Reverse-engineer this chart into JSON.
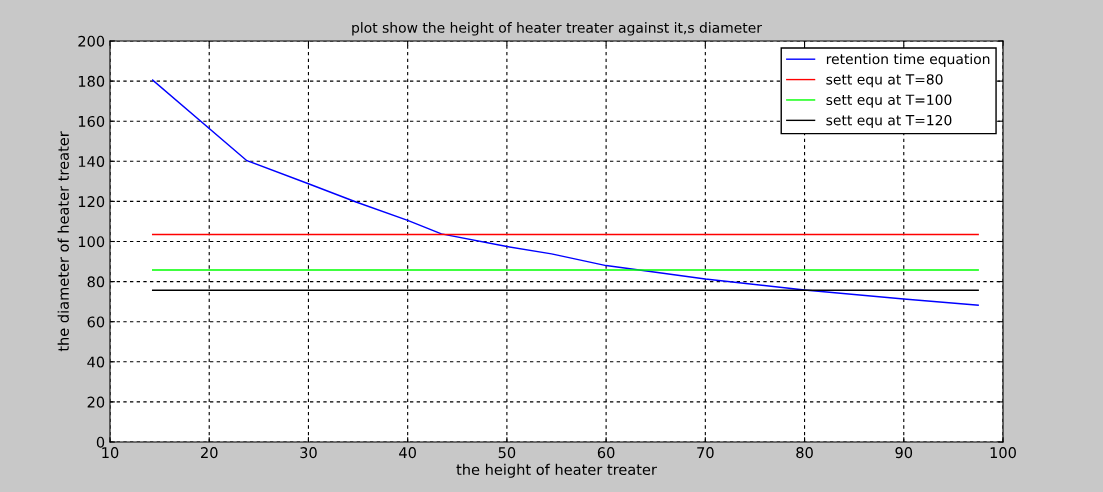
{
  "chart_data": {
    "type": "line",
    "title": "plot show the height of heater treater against it,s diameter",
    "xlabel": "the height of heater treater",
    "ylabel": "the diameter of heater treater",
    "xlim": [
      10,
      100
    ],
    "xticks": [
      10,
      20,
      30,
      40,
      50,
      60,
      70,
      80,
      90,
      100
    ],
    "ylim": [
      0,
      200
    ],
    "yticks": [
      0,
      20,
      40,
      60,
      80,
      100,
      120,
      140,
      160,
      180,
      200
    ],
    "grid": true,
    "legend": "top right",
    "line_style": "solid",
    "marker": "none",
    "series": [
      {
        "name": "retention time equation",
        "color": "#0000ff",
        "x": [
          14.3,
          23.8,
          30,
          34.8,
          40,
          43.4,
          50,
          54.5,
          60,
          70,
          80,
          90,
          97.5
        ],
        "values": [
          180.5,
          140.3,
          128.8,
          119.7,
          110.5,
          103.8,
          97.5,
          93.8,
          88.0,
          81.3,
          75.8,
          71.3,
          68.2
        ]
      },
      {
        "name": "sett equ at T=80",
        "color": "#ff0000",
        "x": [
          14.3,
          97.5
        ],
        "values": [
          103.5,
          103.5
        ]
      },
      {
        "name": "sett equ at T=100",
        "color": "#00ff00",
        "x": [
          14.3,
          97.5
        ],
        "values": [
          85.8,
          85.8
        ]
      },
      {
        "name": "sett equ at T=120",
        "color": "#000000",
        "x": [
          14.3,
          97.5
        ],
        "values": [
          75.7,
          75.7
        ]
      }
    ]
  }
}
